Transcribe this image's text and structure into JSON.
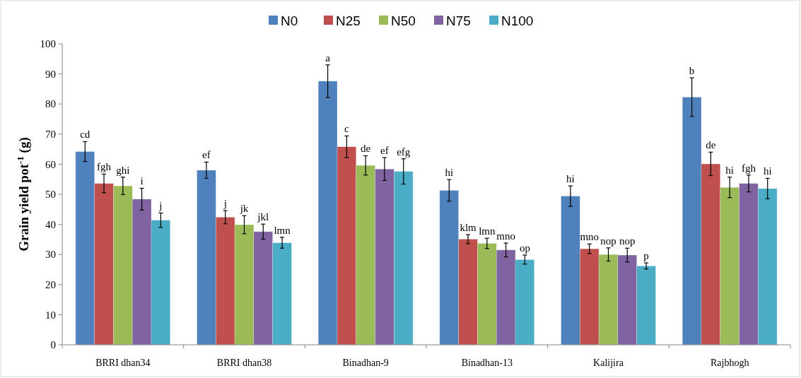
{
  "chart_data": {
    "type": "bar",
    "ylabel": "Grain yield  pot$^{-1}$ (g)",
    "categories": [
      "BRRI dhan34",
      "BRRI dhan38",
      "Binadhan-9",
      "Binadhan-13",
      "Kalijira",
      "Rajbhogh"
    ],
    "series": [
      {
        "name": "N0",
        "color": "#4f81bd",
        "values": [
          64.2,
          58.0,
          87.6,
          51.3,
          49.4,
          82.3
        ],
        "errors": [
          3.3,
          2.7,
          5.4,
          3.6,
          3.4,
          6.4
        ],
        "value_labels": [
          "cd",
          "ef",
          "a",
          "hi",
          "hi",
          "b"
        ]
      },
      {
        "name": "N25",
        "color": "#c0504d",
        "values": [
          53.6,
          42.4,
          65.8,
          35.1,
          31.9,
          60.1
        ],
        "errors": [
          3.1,
          2.2,
          3.6,
          1.5,
          1.6,
          3.9
        ],
        "value_labels": [
          "fgh",
          "j",
          "c",
          "klm",
          "mno",
          "de"
        ]
      },
      {
        "name": "N50",
        "color": "#9bbb59",
        "values": [
          52.8,
          39.9,
          59.6,
          33.7,
          30.0,
          52.3
        ],
        "errors": [
          2.9,
          3.0,
          3.2,
          1.7,
          2.2,
          3.4
        ],
        "value_labels": [
          "ghi",
          "jk",
          "de",
          "lmn",
          "nop",
          "hi"
        ]
      },
      {
        "name": "N75",
        "color": "#8064a2",
        "values": [
          48.4,
          37.6,
          58.4,
          31.5,
          29.8,
          53.6
        ],
        "errors": [
          3.6,
          2.5,
          3.8,
          2.3,
          2.3,
          2.8
        ],
        "value_labels": [
          "i",
          "jkl",
          "ef",
          "mno",
          "nop",
          "fgh"
        ]
      },
      {
        "name": "N100",
        "color": "#4bacc6",
        "values": [
          41.4,
          33.9,
          57.6,
          28.3,
          26.2,
          51.9
        ],
        "errors": [
          2.4,
          1.8,
          4.2,
          1.5,
          1.0,
          3.4
        ],
        "value_labels": [
          "j",
          "lmn",
          "efg",
          "op",
          "p",
          "hi"
        ]
      }
    ],
    "ylim": [
      0,
      100
    ],
    "yticks": [
      0,
      10,
      20,
      30,
      40,
      50,
      60,
      70,
      80,
      90,
      100
    ],
    "grid": false,
    "legend": "top"
  }
}
